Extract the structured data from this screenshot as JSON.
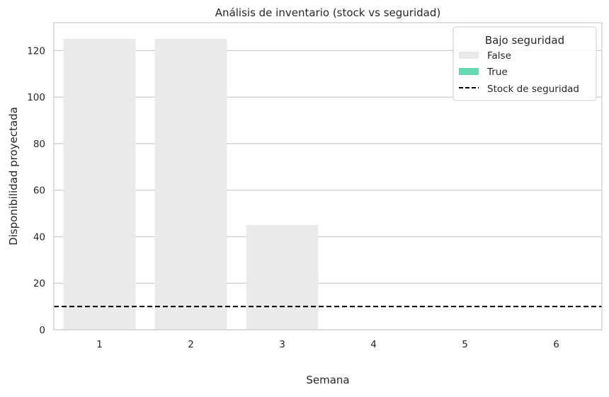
{
  "chart_data": {
    "type": "bar",
    "title": "Análisis de inventario (stock vs seguridad)",
    "xlabel": "Semana",
    "ylabel": "Disponibilidad proyectada",
    "categories": [
      "1",
      "2",
      "3",
      "4",
      "5",
      "6"
    ],
    "values": [
      125,
      125,
      45,
      0,
      0,
      0
    ],
    "below_safety": [
      false,
      false,
      false,
      true,
      true,
      true
    ],
    "ylim": [
      0,
      132
    ],
    "yticks": [
      0,
      20,
      40,
      60,
      80,
      100,
      120
    ],
    "grid": true,
    "reference_line": {
      "label": "Stock de seguridad",
      "value": 10,
      "color": "#000000",
      "style": "dashed"
    },
    "legend": {
      "title": "Bajo seguridad",
      "position": "top-right",
      "entries": [
        {
          "label": "False",
          "color": "#eaeaea"
        },
        {
          "label": "True",
          "color": "#66d9b0"
        },
        {
          "label": "Stock de seguridad",
          "color": "#000000"
        }
      ]
    },
    "colors": {
      "false": "#eaeaea",
      "true": "#66d9b0"
    }
  }
}
